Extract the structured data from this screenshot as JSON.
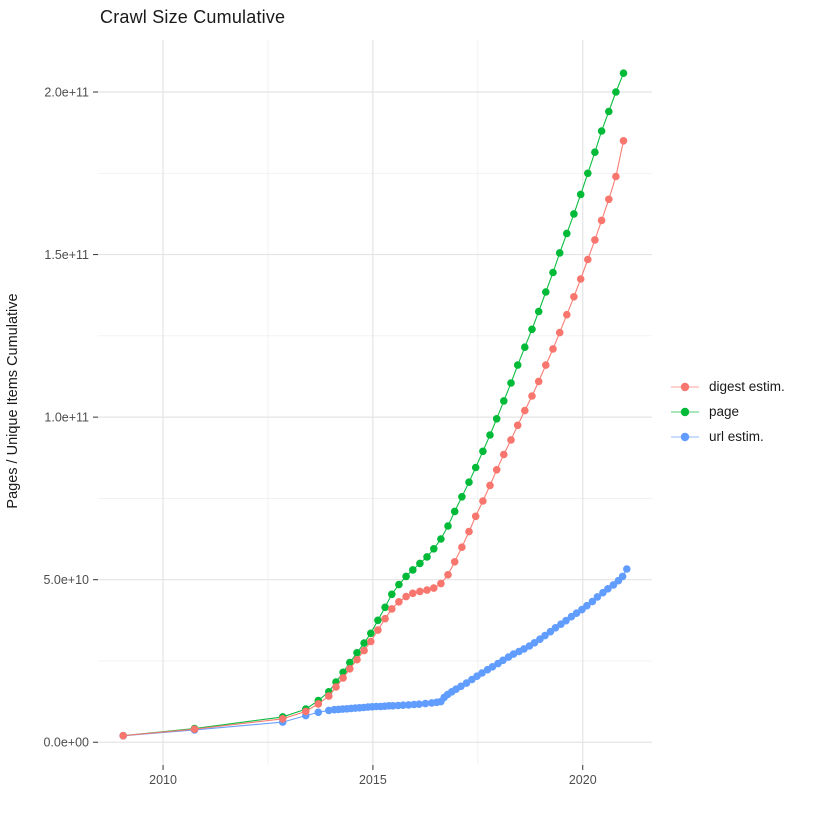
{
  "title": "Crawl Size Cumulative",
  "axes": {
    "y_title": "Pages / Unique Items Cumulative",
    "x_tick_labels": [
      "2010",
      "2015",
      "2020"
    ],
    "y_tick_labels": [
      "0.0e+00",
      "5.0e+10",
      "1.0e+11",
      "1.5e+11",
      "2.0e+11"
    ]
  },
  "colors": {
    "background": "#ffffff",
    "grid_major": "#e4e4e4",
    "grid_minor": "#f1f1f1",
    "tick_mark": "#333333",
    "tick_label": "#4d4d4d",
    "title_text": "#1a1a1a"
  },
  "chart_data": {
    "type": "scatter",
    "title": "Crawl Size Cumulative",
    "xlabel": "",
    "ylabel": "Pages / Unique Items Cumulative",
    "value_unit": "items, values stored as multiples of 1e10",
    "xlim": [
      2008.45,
      2021.65
    ],
    "ylim_e10": [
      -0.7,
      21.6
    ],
    "x_major_ticks": [
      2010,
      2015,
      2020
    ],
    "x_minor_ticks": [
      2012.5,
      2017.5
    ],
    "y_major_ticks_e10": [
      0,
      5,
      10,
      15,
      20
    ],
    "y_minor_ticks_e10": [
      2.5,
      7.5,
      12.5,
      17.5
    ],
    "grid": true,
    "legend_position": "right",
    "series": [
      {
        "name": "page",
        "color": "#00BA38",
        "points": [
          [
            2009.05,
            0.2
          ],
          [
            2010.75,
            0.42
          ],
          [
            2012.85,
            0.78
          ],
          [
            2013.4,
            1.02
          ],
          [
            2013.7,
            1.28
          ],
          [
            2013.95,
            1.55
          ],
          [
            2014.12,
            1.85
          ],
          [
            2014.29,
            2.15
          ],
          [
            2014.45,
            2.45
          ],
          [
            2014.62,
            2.75
          ],
          [
            2014.79,
            3.05
          ],
          [
            2014.95,
            3.35
          ],
          [
            2015.12,
            3.75
          ],
          [
            2015.29,
            4.15
          ],
          [
            2015.45,
            4.55
          ],
          [
            2015.62,
            4.85
          ],
          [
            2015.79,
            5.1
          ],
          [
            2015.95,
            5.3
          ],
          [
            2016.12,
            5.5
          ],
          [
            2016.29,
            5.7
          ],
          [
            2016.45,
            5.95
          ],
          [
            2016.62,
            6.25
          ],
          [
            2016.79,
            6.65
          ],
          [
            2016.95,
            7.1
          ],
          [
            2017.12,
            7.55
          ],
          [
            2017.29,
            8.0
          ],
          [
            2017.45,
            8.45
          ],
          [
            2017.62,
            8.95
          ],
          [
            2017.79,
            9.45
          ],
          [
            2017.95,
            9.95
          ],
          [
            2018.12,
            10.5
          ],
          [
            2018.29,
            11.05
          ],
          [
            2018.45,
            11.6
          ],
          [
            2018.62,
            12.15
          ],
          [
            2018.79,
            12.7
          ],
          [
            2018.95,
            13.25
          ],
          [
            2019.12,
            13.85
          ],
          [
            2019.29,
            14.45
          ],
          [
            2019.45,
            15.05
          ],
          [
            2019.62,
            15.65
          ],
          [
            2019.79,
            16.25
          ],
          [
            2019.95,
            16.85
          ],
          [
            2020.12,
            17.5
          ],
          [
            2020.29,
            18.15
          ],
          [
            2020.45,
            18.8
          ],
          [
            2020.62,
            19.4
          ],
          [
            2020.79,
            20.0
          ],
          [
            2020.97,
            20.58
          ]
        ]
      },
      {
        "name": "url estim.",
        "color": "#619CFF",
        "points": [
          [
            2009.05,
            0.2
          ],
          [
            2010.75,
            0.38
          ],
          [
            2012.85,
            0.62
          ],
          [
            2013.4,
            0.82
          ],
          [
            2013.7,
            0.92
          ],
          [
            2013.95,
            0.98
          ],
          [
            2014.08,
            1.0
          ],
          [
            2014.18,
            1.01
          ],
          [
            2014.28,
            1.02
          ],
          [
            2014.38,
            1.03
          ],
          [
            2014.48,
            1.04
          ],
          [
            2014.58,
            1.05
          ],
          [
            2014.68,
            1.06
          ],
          [
            2014.78,
            1.07
          ],
          [
            2014.88,
            1.08
          ],
          [
            2014.98,
            1.09
          ],
          [
            2015.08,
            1.1
          ],
          [
            2015.18,
            1.1
          ],
          [
            2015.28,
            1.11
          ],
          [
            2015.38,
            1.12
          ],
          [
            2015.48,
            1.12
          ],
          [
            2015.6,
            1.13
          ],
          [
            2015.72,
            1.14
          ],
          [
            2015.85,
            1.15
          ],
          [
            2015.98,
            1.16
          ],
          [
            2016.1,
            1.17
          ],
          [
            2016.25,
            1.19
          ],
          [
            2016.4,
            1.21
          ],
          [
            2016.52,
            1.23
          ],
          [
            2016.62,
            1.25
          ],
          [
            2016.7,
            1.38
          ],
          [
            2016.78,
            1.47
          ],
          [
            2016.88,
            1.55
          ],
          [
            2016.98,
            1.63
          ],
          [
            2017.1,
            1.72
          ],
          [
            2017.23,
            1.82
          ],
          [
            2017.36,
            1.93
          ],
          [
            2017.48,
            2.03
          ],
          [
            2017.6,
            2.13
          ],
          [
            2017.73,
            2.23
          ],
          [
            2017.85,
            2.32
          ],
          [
            2017.98,
            2.42
          ],
          [
            2018.1,
            2.52
          ],
          [
            2018.23,
            2.62
          ],
          [
            2018.35,
            2.71
          ],
          [
            2018.48,
            2.79
          ],
          [
            2018.6,
            2.87
          ],
          [
            2018.73,
            2.96
          ],
          [
            2018.85,
            3.06
          ],
          [
            2018.98,
            3.17
          ],
          [
            2019.1,
            3.28
          ],
          [
            2019.23,
            3.4
          ],
          [
            2019.35,
            3.52
          ],
          [
            2019.48,
            3.63
          ],
          [
            2019.6,
            3.74
          ],
          [
            2019.73,
            3.86
          ],
          [
            2019.85,
            3.97
          ],
          [
            2019.98,
            4.08
          ],
          [
            2020.1,
            4.2
          ],
          [
            2020.23,
            4.33
          ],
          [
            2020.35,
            4.47
          ],
          [
            2020.48,
            4.6
          ],
          [
            2020.6,
            4.72
          ],
          [
            2020.73,
            4.84
          ],
          [
            2020.85,
            4.97
          ],
          [
            2020.95,
            5.1
          ],
          [
            2021.05,
            5.33
          ]
        ]
      },
      {
        "name": "digest estim.",
        "color": "#F8766D",
        "points": [
          [
            2009.05,
            0.2
          ],
          [
            2010.75,
            0.4
          ],
          [
            2012.85,
            0.72
          ],
          [
            2013.4,
            0.95
          ],
          [
            2013.7,
            1.18
          ],
          [
            2013.95,
            1.42
          ],
          [
            2014.12,
            1.7
          ],
          [
            2014.29,
            1.98
          ],
          [
            2014.45,
            2.26
          ],
          [
            2014.62,
            2.54
          ],
          [
            2014.79,
            2.82
          ],
          [
            2014.95,
            3.1
          ],
          [
            2015.12,
            3.45
          ],
          [
            2015.29,
            3.8
          ],
          [
            2015.45,
            4.1
          ],
          [
            2015.62,
            4.32
          ],
          [
            2015.79,
            4.48
          ],
          [
            2015.95,
            4.58
          ],
          [
            2016.12,
            4.64
          ],
          [
            2016.29,
            4.68
          ],
          [
            2016.45,
            4.74
          ],
          [
            2016.62,
            4.88
          ],
          [
            2016.79,
            5.15
          ],
          [
            2016.95,
            5.55
          ],
          [
            2017.12,
            6.0
          ],
          [
            2017.29,
            6.48
          ],
          [
            2017.45,
            6.95
          ],
          [
            2017.62,
            7.42
          ],
          [
            2017.79,
            7.9
          ],
          [
            2017.95,
            8.38
          ],
          [
            2018.12,
            8.85
          ],
          [
            2018.29,
            9.3
          ],
          [
            2018.45,
            9.75
          ],
          [
            2018.62,
            10.2
          ],
          [
            2018.79,
            10.65
          ],
          [
            2018.95,
            11.1
          ],
          [
            2019.12,
            11.6
          ],
          [
            2019.29,
            12.1
          ],
          [
            2019.45,
            12.6
          ],
          [
            2019.62,
            13.15
          ],
          [
            2019.79,
            13.7
          ],
          [
            2019.95,
            14.25
          ],
          [
            2020.12,
            14.85
          ],
          [
            2020.29,
            15.45
          ],
          [
            2020.45,
            16.05
          ],
          [
            2020.62,
            16.7
          ],
          [
            2020.79,
            17.4
          ],
          [
            2020.97,
            18.5
          ]
        ]
      }
    ],
    "legend_order": [
      "digest estim.",
      "page",
      "url estim."
    ]
  }
}
